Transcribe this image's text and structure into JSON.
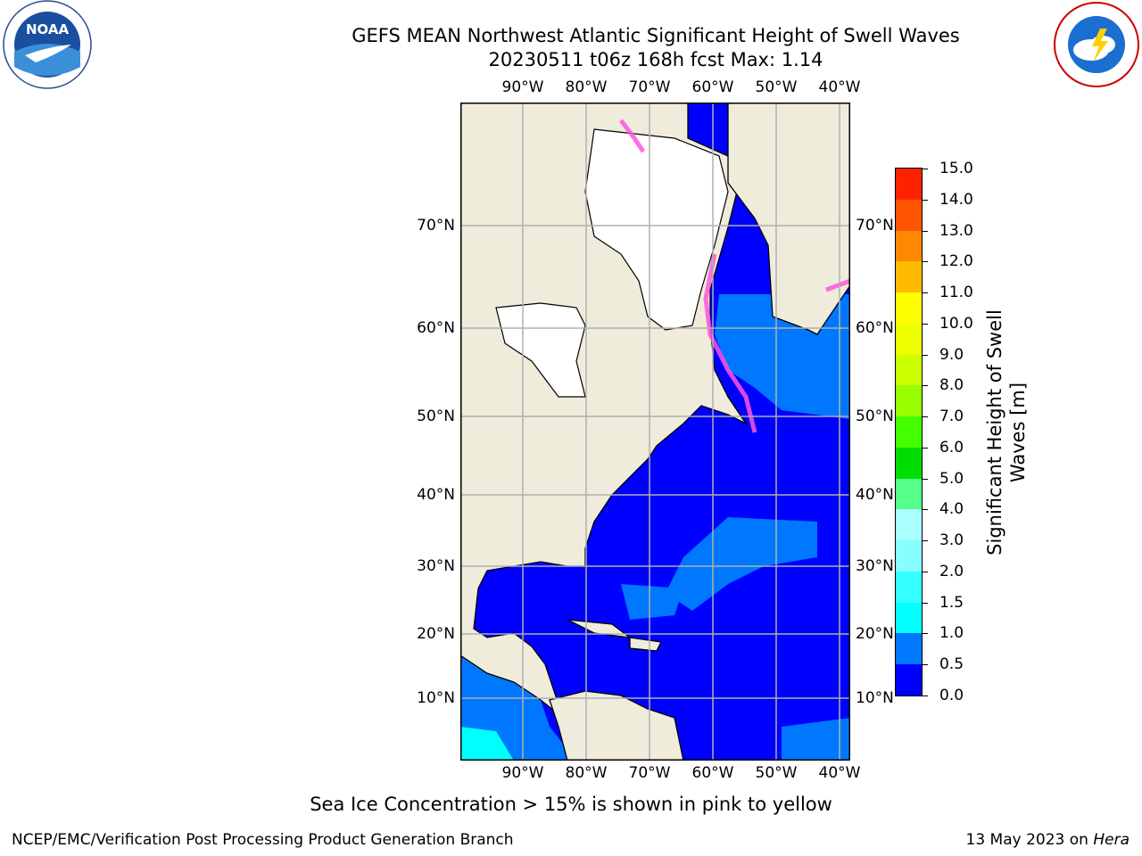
{
  "title_line1": "GEFS MEAN Northwest Atlantic Significant Height of Swell Waves",
  "title_line2": "20230511 t06z 168h fcst   Max: 1.14",
  "logos": {
    "left": "noaa-logo",
    "right": "national-weather-service-logo"
  },
  "lon_labels": [
    "90°W",
    "80°W",
    "70°W",
    "60°W",
    "50°W",
    "40°W"
  ],
  "lat_labels": [
    "70°N",
    "60°N",
    "50°N",
    "40°N",
    "30°N",
    "20°N",
    "10°N"
  ],
  "colorbar": {
    "label": "Significant Height of Swell Waves [m]",
    "ticks": [
      "0.0",
      "0.5",
      "1.0",
      "1.5",
      "2.0",
      "3.0",
      "4.0",
      "5.0",
      "6.0",
      "7.0",
      "8.0",
      "9.0",
      "10.0",
      "11.0",
      "12.0",
      "13.0",
      "14.0",
      "15.0"
    ],
    "colors": [
      "#0000ff",
      "#0077ff",
      "#00ffff",
      "#33ffff",
      "#88ffff",
      "#aaffff",
      "#55ff88",
      "#00dd00",
      "#44ff00",
      "#99ff00",
      "#ccff00",
      "#eeff00",
      "#ffff00",
      "#ffbb00",
      "#ff8800",
      "#ff5500",
      "#ff2200"
    ]
  },
  "map_colors": {
    "land": "#efecdc",
    "ocean_low": "#0000ff",
    "ocean_mid": "#0077ff",
    "ice": "#ffffff",
    "ice_edge": "#ff55dd",
    "grid": "#b0b0b0"
  },
  "note": "Sea Ice Concentration > 15% is shown in pink to yellow",
  "footer_left": "NCEP/EMC/Verification Post Processing Product Generation Branch",
  "footer_right_prefix": "13 May 2023 on ",
  "footer_right_host": "Hera"
}
